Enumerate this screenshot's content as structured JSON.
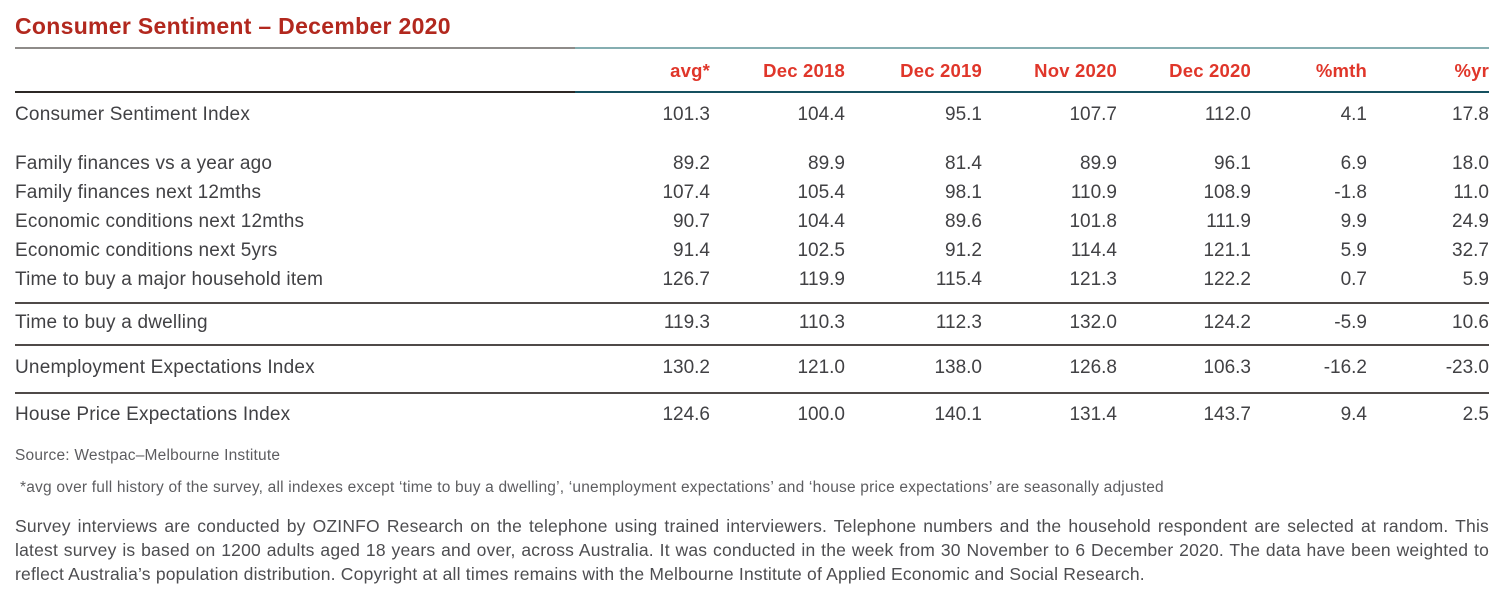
{
  "title": "Consumer Sentiment – December 2020",
  "colors": {
    "title_red": "#b2281e",
    "header_red": "#e0362a",
    "rule_gray": "#8e8b89",
    "rule_teal": "#85aeb1",
    "header_rule_dark": "#2c2825",
    "header_rule_teal": "#15505f",
    "separator_gray": "#4f4a48",
    "body_text": "#414144"
  },
  "chart_data": {
    "type": "table",
    "title": "Consumer Sentiment – December 2020",
    "columns": [
      "avg*",
      "Dec 2018",
      "Dec 2019",
      "Nov 2020",
      "Dec 2020",
      "%mth",
      "%yr"
    ],
    "rows": [
      {
        "label": "Consumer Sentiment Index",
        "values": [
          101.3,
          104.4,
          95.1,
          107.7,
          112.0,
          4.1,
          17.8
        ]
      },
      {
        "label": "Family finances vs a year ago",
        "values": [
          89.2,
          89.9,
          81.4,
          89.9,
          96.1,
          6.9,
          18.0
        ]
      },
      {
        "label": "Family finances next 12mths",
        "values": [
          107.4,
          105.4,
          98.1,
          110.9,
          108.9,
          -1.8,
          11.0
        ]
      },
      {
        "label": "Economic conditions next 12mths",
        "values": [
          90.7,
          104.4,
          89.6,
          101.8,
          111.9,
          9.9,
          24.9
        ]
      },
      {
        "label": "Economic conditions next 5yrs",
        "values": [
          91.4,
          102.5,
          91.2,
          114.4,
          121.1,
          5.9,
          32.7
        ]
      },
      {
        "label": "Time to buy a major household item",
        "values": [
          126.7,
          119.9,
          115.4,
          121.3,
          122.2,
          0.7,
          5.9
        ]
      },
      {
        "label": "Time to buy a dwelling",
        "values": [
          119.3,
          110.3,
          112.3,
          132.0,
          124.2,
          -5.9,
          10.6
        ]
      },
      {
        "label": "Unemployment Expectations Index",
        "values": [
          130.2,
          121.0,
          138.0,
          126.8,
          106.3,
          -16.2,
          -23.0
        ]
      },
      {
        "label": "House Price Expectations Index",
        "values": [
          124.6,
          100.0,
          140.1,
          131.4,
          143.7,
          9.4,
          2.5
        ]
      }
    ]
  },
  "table": {
    "columns": [
      "avg*",
      "Dec 2018",
      "Dec 2019",
      "Nov 2020",
      "Dec 2020",
      "%mth",
      "%yr"
    ],
    "groups": [
      {
        "rows": [
          {
            "label": "Consumer Sentiment Index",
            "values": [
              "101.3",
              "104.4",
              "95.1",
              "107.7",
              "112.0",
              "4.1",
              "17.8"
            ]
          }
        ]
      },
      {
        "rows": [
          {
            "label": "Family finances vs a year ago",
            "values": [
              "89.2",
              "89.9",
              "81.4",
              "89.9",
              "96.1",
              "6.9",
              "18.0"
            ]
          },
          {
            "label": "Family finances next 12mths",
            "values": [
              "107.4",
              "105.4",
              "98.1",
              "110.9",
              "108.9",
              "-1.8",
              "11.0"
            ]
          },
          {
            "label": "Economic conditions next 12mths",
            "values": [
              "90.7",
              "104.4",
              "89.6",
              "101.8",
              "111.9",
              "9.9",
              "24.9"
            ]
          },
          {
            "label": "Economic conditions next 5yrs",
            "values": [
              "91.4",
              "102.5",
              "91.2",
              "114.4",
              "121.1",
              "5.9",
              "32.7"
            ]
          },
          {
            "label": "Time to buy a major household item",
            "values": [
              "126.7",
              "119.9",
              "115.4",
              "121.3",
              "122.2",
              "0.7",
              "5.9"
            ]
          }
        ]
      },
      {
        "rows": [
          {
            "label": "Time to buy a dwelling",
            "values": [
              "119.3",
              "110.3",
              "112.3",
              "132.0",
              "124.2",
              "-5.9",
              "10.6"
            ]
          }
        ]
      },
      {
        "rows": [
          {
            "label": "Unemployment Expectations Index",
            "values": [
              "130.2",
              "121.0",
              "138.0",
              "126.8",
              "106.3",
              "-16.2",
              "-23.0"
            ]
          }
        ]
      },
      {
        "rows": [
          {
            "label": "House Price Expectations Index",
            "values": [
              "124.6",
              "100.0",
              "140.1",
              "131.4",
              "143.7",
              "9.4",
              "2.5"
            ]
          }
        ]
      }
    ]
  },
  "source": "Source: Westpac–Melbourne Institute",
  "footnote": "*avg over full history of the survey, all indexes except ‘time to buy a dwelling’, ‘unemployment expectations’ and ‘house price expectations’ are seasonally adjusted",
  "body_paragraph": "Survey interviews are conducted by OZINFO Research on the telephone using trained interviewers. Telephone numbers and the household respondent are selected at random. This latest survey is based on 1200 adults aged 18 years and over, across Australia. It was conducted in the week from 30 November to 6 December 2020. The data have been weighted to reflect Australia’s population distribution. Copyright at all times remains with the Melbourne Institute of Applied Economic and Social Research."
}
